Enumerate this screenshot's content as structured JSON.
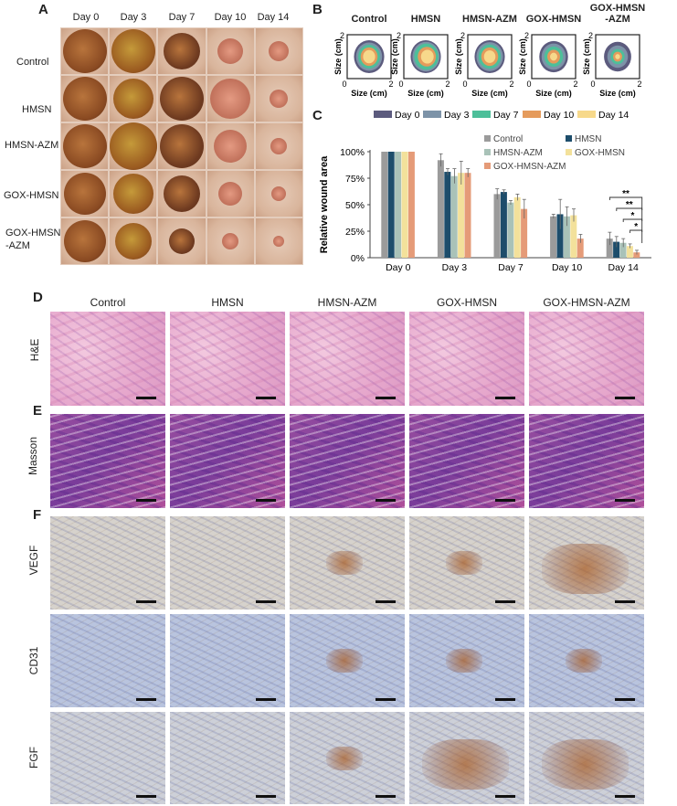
{
  "panels": {
    "A": "A",
    "B": "B",
    "C": "C",
    "D": "D",
    "E": "E",
    "F": "F"
  },
  "groups": [
    "Control",
    "HMSN",
    "HMSN-AZM",
    "GOX-HMSN",
    "GOX-HMSN\n-AZM"
  ],
  "groups_flat": [
    "Control",
    "HMSN",
    "HMSN-AZM",
    "GOX-HMSN",
    "GOX-HMSN-AZM"
  ],
  "days": [
    "Day 0",
    "Day 3",
    "Day 7",
    "Day 10",
    "Day 14"
  ],
  "panelB": {
    "titles": [
      "Control",
      "HMSN",
      "HMSN-AZM",
      "GOX-HMSN",
      "GOX-HMSN\n-AZM"
    ],
    "axis_label": "Size (cm)",
    "tick0": "0",
    "tick2": "2"
  },
  "colors": {
    "day0": "#5c5b7e",
    "day3": "#7d93a8",
    "day7": "#4dbf9a",
    "day10": "#e59b5c",
    "day14": "#f7d98b",
    "control": "#9b9b9b",
    "hmsn": "#1d4d6b",
    "hmsn_azm": "#a9c2b8",
    "gox_hmsn": "#f3e19b",
    "gox_hmsn_azm": "#e59b78"
  },
  "histology": {
    "rows": [
      "H&E",
      "Masson",
      "VEGF",
      "CD31",
      "FGF"
    ]
  },
  "chart_data": {
    "type": "bar",
    "ylabel": "Relative wound area",
    "yticks": [
      "0%",
      "25%",
      "50%",
      "75%",
      "100%"
    ],
    "ylim": [
      0,
      100
    ],
    "categories": [
      "Day 0",
      "Day 3",
      "Day 7",
      "Day 10",
      "Day 14"
    ],
    "series": [
      {
        "name": "Control",
        "values": [
          100,
          92,
          60,
          39,
          18
        ],
        "errors": [
          0,
          6,
          5,
          2,
          6
        ]
      },
      {
        "name": "HMSN",
        "values": [
          100,
          81,
          62,
          41,
          15
        ],
        "errors": [
          0,
          3,
          2,
          14,
          5
        ]
      },
      {
        "name": "HMSN-AZM",
        "values": [
          100,
          77,
          52,
          39,
          14
        ],
        "errors": [
          0,
          7,
          2,
          9,
          4
        ]
      },
      {
        "name": "GOX-HMSN",
        "values": [
          100,
          80,
          57,
          40,
          11
        ],
        "errors": [
          0,
          11,
          3,
          6,
          2
        ]
      },
      {
        "name": "GOX-HMSN-AZM",
        "values": [
          100,
          80,
          46,
          18,
          5
        ],
        "errors": [
          0,
          4,
          9,
          4,
          2
        ]
      }
    ],
    "significance": [
      "**",
      "**",
      "*",
      "*"
    ],
    "legend_placement": "top-right"
  }
}
